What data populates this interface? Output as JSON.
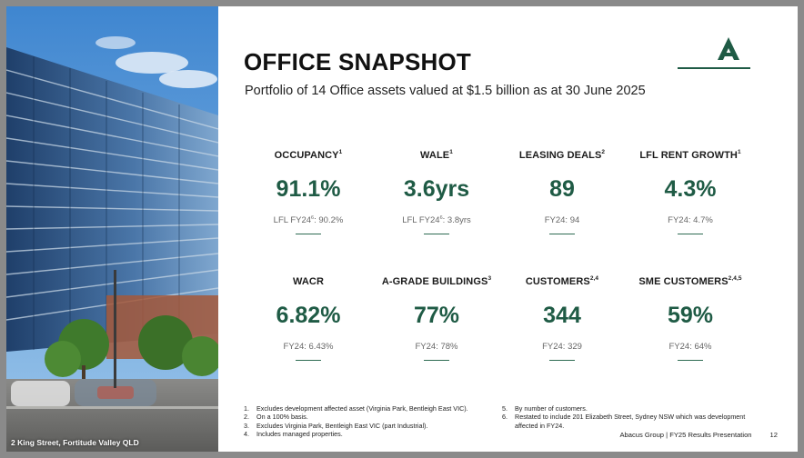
{
  "colors": {
    "accent": "#1f5b45",
    "rule": "#2e6b52"
  },
  "photo": {
    "caption": "2 King Street, Fortitude Valley QLD"
  },
  "header": {
    "title": "OFFICE SNAPSHOT",
    "subtitle": "Portfolio of 14 Office assets valued at $1.5 billion as at 30 June 2025",
    "logo_icon": "abacus-a-logo"
  },
  "metrics": [
    {
      "label": "OCCUPANCY",
      "label_sup": "1",
      "value": "91.1%",
      "prior": "LFL FY24",
      "prior_sup": "6",
      "prior_value": ": 90.2%"
    },
    {
      "label": "WALE",
      "label_sup": "1",
      "value": "3.6yrs",
      "prior": "LFL FY24",
      "prior_sup": "6",
      "prior_value": ": 3.8yrs"
    },
    {
      "label": "LEASING DEALS",
      "label_sup": "2",
      "value": "89",
      "prior": "FY24: 94",
      "prior_sup": "",
      "prior_value": ""
    },
    {
      "label": "LFL RENT GROWTH",
      "label_sup": "1",
      "value": "4.3%",
      "prior": "FY24: 4.7%",
      "prior_sup": "",
      "prior_value": ""
    },
    {
      "label": "WACR",
      "label_sup": "",
      "value": "6.82%",
      "prior": "FY24: 6.43%",
      "prior_sup": "",
      "prior_value": ""
    },
    {
      "label": "A-GRADE BUILDINGS",
      "label_sup": "3",
      "value": "77%",
      "prior": "FY24: 78%",
      "prior_sup": "",
      "prior_value": ""
    },
    {
      "label": "CUSTOMERS",
      "label_sup": "2,4",
      "value": "344",
      "prior": "FY24: 329",
      "prior_sup": "",
      "prior_value": ""
    },
    {
      "label": "SME CUSTOMERS",
      "label_sup": "2,4,5",
      "value": "59%",
      "prior": "FY24: 64%",
      "prior_sup": "",
      "prior_value": ""
    }
  ],
  "footnotes_left": [
    {
      "num": "1.",
      "text": "Excludes development affected asset (Virginia Park, Bentleigh East VIC)."
    },
    {
      "num": "2.",
      "text": "On a 100% basis."
    },
    {
      "num": "3.",
      "text": "Excludes Virginia Park, Bentleigh East VIC (part Industrial)."
    },
    {
      "num": "4.",
      "text": "Includes managed properties."
    }
  ],
  "footnotes_right": [
    {
      "num": "5.",
      "text": "By number of customers."
    },
    {
      "num": "6.",
      "text": "Restated to include 201 Elizabeth Street, Sydney NSW which was development affected in FY24."
    }
  ],
  "footer": {
    "presentation": "Abacus Group | FY25 Results Presentation",
    "page": "12"
  }
}
